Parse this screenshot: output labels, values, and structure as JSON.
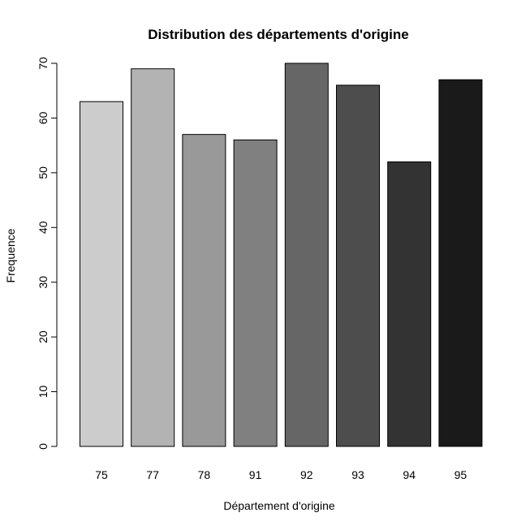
{
  "chart_data": {
    "type": "bar",
    "title": "Distribution des départements d'origine",
    "xlabel": "Département d'origine",
    "ylabel": "Frequence",
    "categories": [
      "75",
      "77",
      "78",
      "91",
      "92",
      "93",
      "94",
      "95"
    ],
    "values": [
      63,
      69,
      57,
      56,
      70,
      66,
      52,
      67
    ],
    "colors": [
      "#cccccc",
      "#b3b3b3",
      "#999999",
      "#808080",
      "#666666",
      "#4d4d4d",
      "#333333",
      "#1a1a1a"
    ],
    "ylim": [
      0,
      70
    ],
    "yticks": [
      0,
      10,
      20,
      30,
      40,
      50,
      60,
      70
    ],
    "grid": false,
    "legend": "none"
  }
}
